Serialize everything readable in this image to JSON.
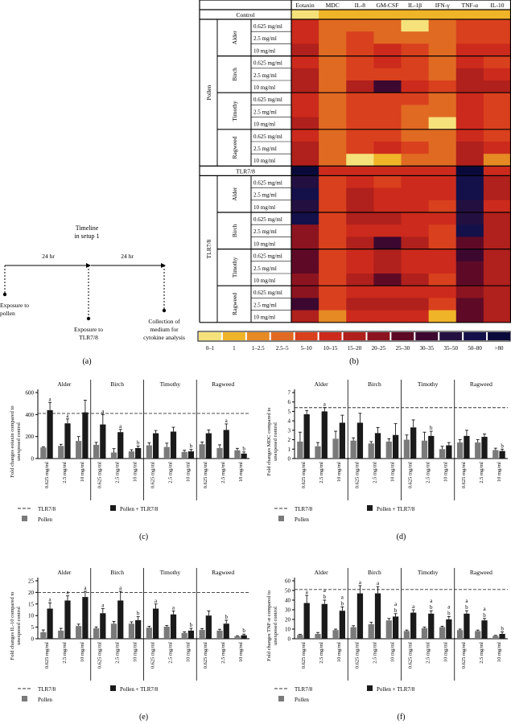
{
  "timeline": {
    "title_line1": "Timeline",
    "title_line2": "in setup 1",
    "dur1": "24 hr",
    "dur2": "24 hr",
    "event1_line1": "Exposure to",
    "event1_line2": "pollen",
    "event2_line1": "Exposure to",
    "event2_line2": "TLR7/8",
    "event3_line1": "Collection of",
    "event3_line2": "medium for",
    "event3_line3": "cytokine analysis",
    "panel_label": "(a)"
  },
  "chart_data": [
    {
      "type": "heatmap",
      "panel_label": "(b)",
      "columns": [
        "Eotaxin",
        "MDC",
        "IL-8",
        "GM-CSF",
        "IL-1β",
        "IFN-γ",
        "TNF-α",
        "IL-10"
      ],
      "control_label": "Control",
      "tlr_label": "TLR7/8",
      "block_labels": [
        "Pollen",
        "TLR7/8"
      ],
      "pollens": [
        "Alder",
        "Birch",
        "Timothy",
        "Ragweed"
      ],
      "doses": [
        "0.625 mg/ml",
        "2.5 mg/ml",
        "10 mg/ml"
      ],
      "legend_labels": [
        "0–1",
        "1",
        "1–2.5",
        "2.5–5",
        "5–10",
        "10–15",
        "15–20",
        "20–25",
        "25–30",
        "30–35",
        "35–50",
        "50–80",
        ">80"
      ],
      "legend_colors": [
        "#f6e27a",
        "#f0b429",
        "#e68a24",
        "#e06a22",
        "#d9401e",
        "#cc2a1c",
        "#b0201c",
        "#8c1420",
        "#5e0a26",
        "#3c0830",
        "#241040",
        "#14104a",
        "#0a0a3a"
      ],
      "control_row": [
        0,
        1,
        1,
        1,
        1,
        1,
        1,
        1
      ],
      "tlr_row": [
        12,
        5,
        5,
        5,
        5,
        5,
        12,
        5
      ],
      "pollen_rows": [
        [
          5,
          3,
          3,
          3,
          0,
          3,
          4,
          4
        ],
        [
          5,
          3,
          4,
          3,
          3,
          3,
          4,
          4
        ],
        [
          6,
          3,
          4,
          5,
          4,
          3,
          5,
          5
        ],
        [
          5,
          3,
          4,
          5,
          4,
          3,
          5,
          4
        ],
        [
          6,
          3,
          4,
          4,
          4,
          3,
          6,
          5
        ],
        [
          6,
          3,
          6,
          9,
          5,
          4,
          6,
          6
        ],
        [
          5,
          3,
          4,
          4,
          4,
          3,
          5,
          4
        ],
        [
          5,
          3,
          4,
          4,
          3,
          3,
          5,
          4
        ],
        [
          6,
          3,
          4,
          4,
          3,
          0,
          5,
          4
        ],
        [
          5,
          3,
          4,
          4,
          3,
          3,
          5,
          4
        ],
        [
          6,
          3,
          4,
          5,
          4,
          3,
          6,
          5
        ],
        [
          6,
          3,
          0,
          1,
          3,
          3,
          6,
          2
        ]
      ],
      "tlr_rows": [
        [
          10,
          4,
          5,
          4,
          5,
          5,
          11,
          6
        ],
        [
          11,
          4,
          6,
          5,
          5,
          5,
          11,
          6
        ],
        [
          10,
          4,
          6,
          5,
          5,
          4,
          10,
          5
        ],
        [
          11,
          4,
          6,
          6,
          5,
          5,
          10,
          6
        ],
        [
          7,
          4,
          5,
          5,
          5,
          4,
          11,
          6
        ],
        [
          7,
          4,
          6,
          9,
          6,
          4,
          8,
          6
        ],
        [
          8,
          4,
          5,
          6,
          5,
          5,
          9,
          6
        ],
        [
          8,
          4,
          5,
          6,
          5,
          5,
          8,
          6
        ],
        [
          7,
          4,
          6,
          8,
          6,
          4,
          8,
          6
        ],
        [
          7,
          4,
          5,
          5,
          5,
          5,
          7,
          6
        ],
        [
          9,
          4,
          6,
          6,
          6,
          4,
          8,
          6
        ],
        [
          6,
          2,
          5,
          5,
          5,
          1,
          8,
          6
        ]
      ]
    },
    {
      "type": "bar",
      "panel_label": "(c)",
      "ylabel_line1": "Fold changes eotaxin compared to",
      "ylabel_line2": "unexposed control",
      "ylim": [
        0,
        600
      ],
      "yticks": [
        0,
        200,
        400,
        600
      ],
      "groups": [
        "Alder",
        "Birch",
        "Timothy",
        "Ragweed"
      ],
      "doses": [
        "0.625 mg/ml",
        "2.5 mg/ml",
        "10 mg/ml"
      ],
      "reference_line": 410,
      "pollen": [
        100,
        115,
        160,
        125,
        55,
        65,
        120,
        105,
        60,
        130,
        95,
        75
      ],
      "pollen_err": [
        6,
        15,
        40,
        22,
        35,
        15,
        22,
        35,
        15,
        20,
        30,
        18
      ],
      "combined": [
        440,
        320,
        420,
        310,
        240,
        95,
        230,
        245,
        65,
        230,
        260,
        45
      ],
      "combined_err": [
        70,
        40,
        110,
        90,
        25,
        18,
        25,
        40,
        18,
        30,
        55,
        15
      ],
      "pollen_sig": [
        "",
        "",
        "",
        "",
        "",
        "",
        "",
        "",
        "",
        "",
        "",
        ""
      ],
      "combined_sig": [
        "a",
        "a",
        "",
        "a",
        "a",
        "b",
        "",
        "",
        "b",
        "",
        "a",
        "b"
      ],
      "legend_ref": "TLR7/8",
      "legend_pollen": "Pollen",
      "legend_combined": "Pollen + TLR7/8"
    },
    {
      "type": "bar",
      "panel_label": "(d)",
      "ylabel_line1": "Fold changes MDC compared to",
      "ylabel_line2": "unexposed control",
      "ylim": [
        0,
        7
      ],
      "yticks": [
        0,
        1,
        2,
        3,
        4,
        5,
        6,
        7
      ],
      "groups": [
        "Alder",
        "Birch",
        "Timothy",
        "Ragweed"
      ],
      "doses": [
        "0.625 mg/ml",
        "2.5 mg/ml",
        "10 mg/ml"
      ],
      "reference_line": 5.4,
      "pollen": [
        1.8,
        1.3,
        2.1,
        1.9,
        1.6,
        1.8,
        2.0,
        1.9,
        1.0,
        1.7,
        1.7,
        0.9
      ],
      "pollen_err": [
        1.0,
        0.4,
        0.8,
        0.3,
        0.2,
        0.3,
        0.5,
        0.9,
        0.3,
        0.3,
        0.3,
        0.2
      ],
      "combined": [
        4.7,
        5.0,
        3.8,
        3.8,
        2.7,
        2.5,
        3.3,
        2.4,
        1.4,
        2.4,
        2.3,
        0.8
      ],
      "combined_err": [
        0.4,
        0.4,
        0.8,
        1.0,
        0.6,
        1.2,
        0.8,
        0.5,
        0.3,
        0.6,
        0.3,
        0.2
      ],
      "pollen_sig": [
        "",
        "",
        "",
        "",
        "",
        "",
        "",
        "",
        "",
        "",
        "",
        ""
      ],
      "combined_sig": [
        "",
        "a",
        "",
        "",
        "",
        "",
        "",
        "b",
        "",
        "",
        "",
        "b"
      ],
      "legend_ref": "TLR7/8",
      "legend_pollen": "Pollen",
      "legend_combined": "Pollen + TLR7/8"
    },
    {
      "type": "bar",
      "panel_label": "(e)",
      "ylabel_line1": "Fold changes IL-10 compared to",
      "ylabel_line2": "unexposed control",
      "ylim": [
        0,
        25
      ],
      "yticks": [
        0,
        5,
        10,
        15,
        20,
        25
      ],
      "groups": [
        "Alder",
        "Birch",
        "Timothy",
        "Ragweed"
      ],
      "doses": [
        "0.625 mg/ml",
        "2.5 mg/ml",
        "10 mg/ml"
      ],
      "reference_line": 20,
      "pollen": [
        2.8,
        3.5,
        5.5,
        4.5,
        6.5,
        6.5,
        4.8,
        5.2,
        2.5,
        3.8,
        3.5,
        1.0
      ],
      "pollen_err": [
        1.0,
        1.0,
        0.8,
        0.6,
        1.0,
        0.8,
        0.6,
        0.5,
        0.5,
        0.6,
        0.6,
        0.3
      ],
      "combined": [
        13,
        16.5,
        18,
        11,
        16.5,
        8,
        13,
        10.5,
        3.5,
        10,
        6.5,
        1.5
      ],
      "combined_err": [
        2.5,
        2.0,
        2.5,
        2.0,
        4.0,
        1.5,
        2.0,
        1.5,
        1.0,
        2.0,
        1.5,
        0.5
      ],
      "pollen_sig": [
        "",
        "",
        "",
        "",
        "",
        "",
        "",
        "",
        "",
        "",
        "",
        ""
      ],
      "combined_sig": [
        "a",
        "a",
        "a",
        "a",
        "a",
        "b",
        "a",
        "a",
        "b",
        "",
        "b",
        "b"
      ],
      "legend_ref": "TLR7/8",
      "legend_pollen": "Pollen",
      "legend_combined": "Pollen + TLR7/8"
    },
    {
      "type": "bar",
      "panel_label": "(f)",
      "ylabel_line1": "Fold changes TNF-α compared to",
      "ylabel_line2": "unexposed control",
      "ylim": [
        0,
        60
      ],
      "yticks": [
        0,
        10,
        20,
        30,
        40,
        50,
        60
      ],
      "groups": [
        "Alder",
        "Birch",
        "Timothy",
        "Ragweed"
      ],
      "doses": [
        "0.625 mg/ml",
        "2.5 mg/ml",
        "10 mg/ml"
      ],
      "reference_line": 51,
      "pollen": [
        4,
        5,
        9,
        12,
        15,
        19,
        8,
        11,
        12,
        9,
        8,
        3
      ],
      "pollen_err": [
        0.5,
        1.5,
        1.0,
        1.5,
        2.0,
        2.0,
        1.0,
        1.0,
        1.0,
        1.0,
        1.0,
        0.5
      ],
      "combined": [
        37,
        36,
        29,
        47,
        47,
        23,
        27,
        26,
        20,
        26,
        19,
        5
      ],
      "combined_err": [
        8,
        4,
        4,
        8,
        7,
        3,
        3,
        3,
        3,
        3,
        2,
        2
      ],
      "pollen_sig": [
        "",
        "",
        "",
        "",
        "",
        "",
        "",
        "",
        "",
        "",
        "",
        ""
      ],
      "combined_sig": [
        "a",
        "a b",
        "a b",
        "a",
        "a",
        "a b",
        "a",
        "a b",
        "a b",
        "a b",
        "a b",
        "b"
      ],
      "legend_ref": "TLR7/8",
      "legend_pollen": "Pollen",
      "legend_combined": "Pollen + TLR7/8"
    }
  ]
}
